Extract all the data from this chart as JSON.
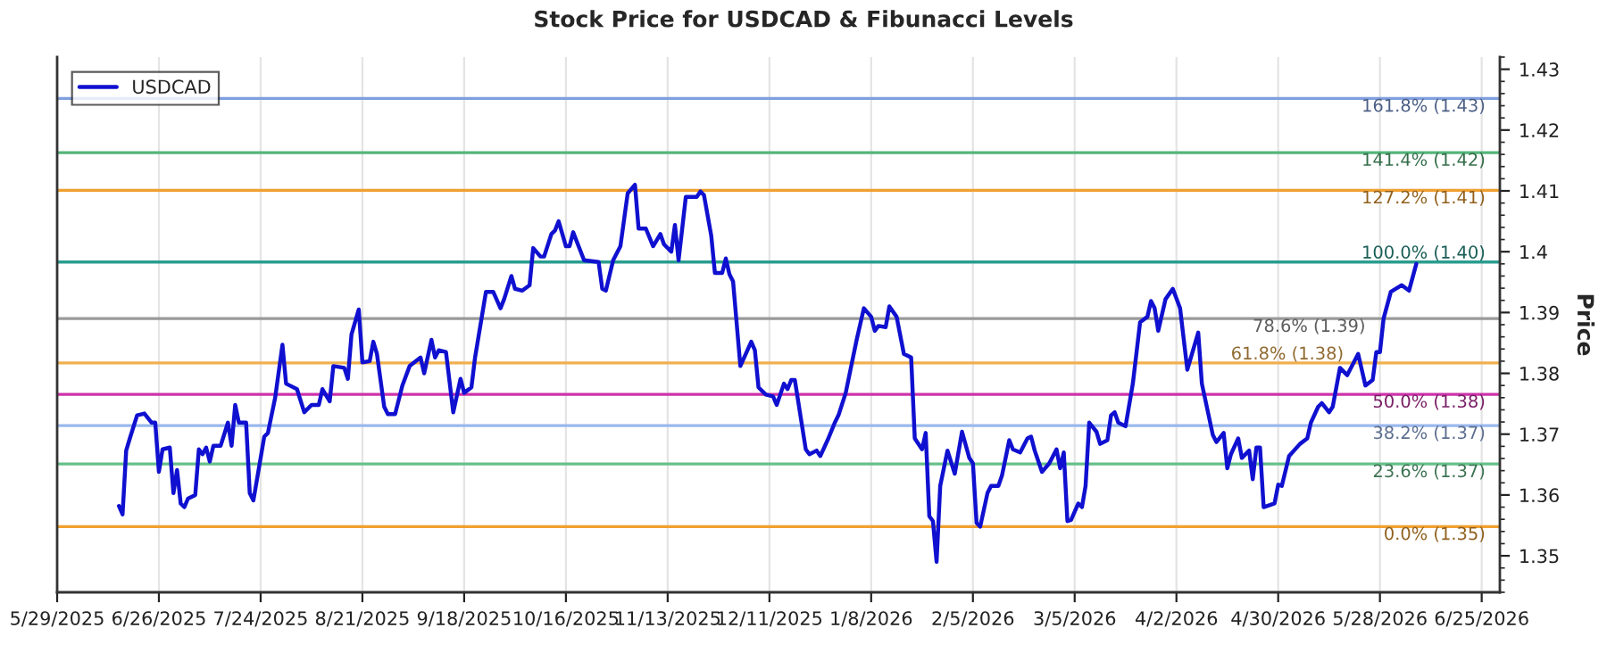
{
  "chart_data": {
    "type": "line",
    "title": "Stock Price for USDCAD & Fibunacci Levels",
    "ylabel": "Price",
    "x": [
      "2025-06-15",
      "2025-06-16",
      "2025-06-17",
      "2025-06-18",
      "2025-06-20",
      "2025-06-22",
      "2025-06-24",
      "2025-06-25",
      "2025-06-26",
      "2025-06-27",
      "2025-06-29",
      "2025-06-30",
      "2025-07-01",
      "2025-07-02",
      "2025-07-03",
      "2025-07-04",
      "2025-07-06",
      "2025-07-07",
      "2025-07-08",
      "2025-07-09",
      "2025-07-10",
      "2025-07-11",
      "2025-07-13",
      "2025-07-15",
      "2025-07-16",
      "2025-07-17",
      "2025-07-18",
      "2025-07-20",
      "2025-07-21",
      "2025-07-22",
      "2025-07-25",
      "2025-07-26",
      "2025-07-28",
      "2025-07-30",
      "2025-07-31",
      "2025-08-03",
      "2025-08-05",
      "2025-08-07",
      "2025-08-09",
      "2025-08-10",
      "2025-08-12",
      "2025-08-13",
      "2025-08-16",
      "2025-08-17",
      "2025-08-18",
      "2025-08-20",
      "2025-08-21",
      "2025-08-23",
      "2025-08-24",
      "2025-08-25",
      "2025-08-27",
      "2025-08-28",
      "2025-08-30",
      "2025-09-01",
      "2025-09-03",
      "2025-09-06",
      "2025-09-07",
      "2025-09-09",
      "2025-09-10",
      "2025-09-11",
      "2025-09-13",
      "2025-09-15",
      "2025-09-17",
      "2025-09-18",
      "2025-09-20",
      "2025-09-21",
      "2025-09-24",
      "2025-09-26",
      "2025-09-28",
      "2025-09-29",
      "2025-10-01",
      "2025-10-02",
      "2025-10-04",
      "2025-10-06",
      "2025-10-07",
      "2025-10-09",
      "2025-10-10",
      "2025-10-12",
      "2025-10-13",
      "2025-10-14",
      "2025-10-16",
      "2025-10-17",
      "2025-10-18",
      "2025-10-21",
      "2025-10-25",
      "2025-10-26",
      "2025-10-27",
      "2025-10-29",
      "2025-10-31",
      "2025-11-02",
      "2025-11-04",
      "2025-11-05",
      "2025-11-07",
      "2025-11-09",
      "2025-11-11",
      "2025-11-12",
      "2025-11-14",
      "2025-11-15",
      "2025-11-16",
      "2025-11-18",
      "2025-11-21",
      "2025-11-22",
      "2025-11-23",
      "2025-11-25",
      "2025-11-26",
      "2025-11-28",
      "2025-11-29",
      "2025-11-30",
      "2025-12-01",
      "2025-12-03",
      "2025-12-06",
      "2025-12-07",
      "2025-12-08",
      "2025-12-10",
      "2025-12-12",
      "2025-12-13",
      "2025-12-15",
      "2025-12-16",
      "2025-12-17",
      "2025-12-18",
      "2025-12-21",
      "2025-12-22",
      "2025-12-24",
      "2025-12-25",
      "2025-12-27",
      "2025-12-29",
      "2025-12-30",
      "2026-01-01",
      "2026-01-04",
      "2026-01-06",
      "2026-01-08",
      "2026-01-09",
      "2026-01-10",
      "2026-01-12",
      "2026-01-13",
      "2026-01-15",
      "2026-01-17",
      "2026-01-19",
      "2026-01-20",
      "2026-01-22",
      "2026-01-23",
      "2026-01-24",
      "2026-01-25",
      "2026-01-26",
      "2026-01-27",
      "2026-01-29",
      "2026-01-31",
      "2026-02-02",
      "2026-02-04",
      "2026-02-05",
      "2026-02-06",
      "2026-02-07",
      "2026-02-09",
      "2026-02-10",
      "2026-02-12",
      "2026-02-13",
      "2026-02-15",
      "2026-02-16",
      "2026-02-18",
      "2026-02-20",
      "2026-02-21",
      "2026-02-22",
      "2026-02-24",
      "2026-02-26",
      "2026-02-28",
      "2026-03-01",
      "2026-03-02",
      "2026-03-03",
      "2026-03-04",
      "2026-03-06",
      "2026-03-07",
      "2026-03-08",
      "2026-03-09",
      "2026-03-11",
      "2026-03-12",
      "2026-03-14",
      "2026-03-15",
      "2026-03-16",
      "2026-03-17",
      "2026-03-19",
      "2026-03-21",
      "2026-03-23",
      "2026-03-25",
      "2026-03-26",
      "2026-03-27",
      "2026-03-28",
      "2026-03-30",
      "2026-04-01",
      "2026-04-03",
      "2026-04-05",
      "2026-04-08",
      "2026-04-09",
      "2026-04-12",
      "2026-04-13",
      "2026-04-15",
      "2026-04-16",
      "2026-04-17",
      "2026-04-19",
      "2026-04-20",
      "2026-04-22",
      "2026-04-23",
      "2026-04-24",
      "2026-04-25",
      "2026-04-26",
      "2026-04-29",
      "2026-04-30",
      "2026-05-01",
      "2026-05-03",
      "2026-05-06",
      "2026-05-08",
      "2026-05-09",
      "2026-05-11",
      "2026-05-12",
      "2026-05-14",
      "2026-05-15",
      "2026-05-17",
      "2026-05-19",
      "2026-05-22",
      "2026-05-24",
      "2026-05-26",
      "2026-05-27",
      "2026-05-28",
      "2026-05-29",
      "2026-05-31",
      "2026-06-03",
      "2026-06-05",
      "2026-06-07"
    ],
    "series": [
      {
        "name": "USDCAD",
        "color": "#1010d0",
        "values": [
          1.3582,
          1.3568,
          1.3673,
          1.3693,
          1.3731,
          1.3734,
          1.3719,
          1.3719,
          1.3638,
          1.3675,
          1.3678,
          1.3603,
          1.3641,
          1.3586,
          1.358,
          1.3594,
          1.36,
          1.3675,
          1.3667,
          1.3678,
          1.3655,
          1.3681,
          1.3681,
          1.3719,
          1.3681,
          1.3748,
          1.3719,
          1.3719,
          1.3603,
          1.3591,
          1.3696,
          1.3702,
          1.376,
          1.3847,
          1.3783,
          1.3774,
          1.3736,
          1.3748,
          1.3748,
          1.3774,
          1.3754,
          1.3812,
          1.3809,
          1.3791,
          1.3864,
          1.3905,
          1.3818,
          1.382,
          1.3852,
          1.3832,
          1.3745,
          1.3733,
          1.3733,
          1.378,
          1.3812,
          1.3826,
          1.38,
          1.3855,
          1.3826,
          1.3838,
          1.3835,
          1.3736,
          1.3791,
          1.3768,
          1.3777,
          1.3826,
          1.3934,
          1.3934,
          1.3907,
          1.3922,
          1.396,
          1.3939,
          1.3936,
          1.3945,
          1.4006,
          1.3992,
          1.3992,
          1.4029,
          1.4035,
          1.405,
          1.4009,
          1.4009,
          1.4032,
          1.3986,
          1.3983,
          1.3939,
          1.3936,
          1.3986,
          1.4009,
          1.4096,
          1.411,
          1.4038,
          1.4038,
          1.4009,
          1.4029,
          1.4012,
          1.4,
          1.4044,
          1.3986,
          1.409,
          1.409,
          1.4099,
          1.4093,
          1.4026,
          1.3965,
          1.3965,
          1.3989,
          1.3963,
          1.3951,
          1.3812,
          1.3852,
          1.3838,
          1.3777,
          1.3765,
          1.3762,
          1.3748,
          1.3783,
          1.3774,
          1.3789,
          1.3789,
          1.3675,
          1.3667,
          1.3673,
          1.3664,
          1.369,
          1.3719,
          1.3731,
          1.3768,
          1.3855,
          1.3907,
          1.3893,
          1.387,
          1.3878,
          1.3876,
          1.391,
          1.3893,
          1.3832,
          1.3826,
          1.3693,
          1.3675,
          1.3702,
          1.3565,
          1.3557,
          1.349,
          1.3615,
          1.3673,
          1.3635,
          1.3704,
          1.3661,
          1.3652,
          1.3554,
          1.3548,
          1.3603,
          1.3615,
          1.3615,
          1.3632,
          1.369,
          1.3675,
          1.367,
          1.3693,
          1.3696,
          1.3673,
          1.3638,
          1.3652,
          1.3675,
          1.3644,
          1.367,
          1.3557,
          1.3559,
          1.3586,
          1.358,
          1.3615,
          1.3719,
          1.3704,
          1.3684,
          1.369,
          1.3731,
          1.3736,
          1.3719,
          1.3713,
          1.3783,
          1.3884,
          1.3893,
          1.3919,
          1.3907,
          1.387,
          1.3922,
          1.3939,
          1.3907,
          1.3806,
          1.3867,
          1.3783,
          1.3699,
          1.3687,
          1.3702,
          1.3644,
          1.3667,
          1.3693,
          1.3661,
          1.3673,
          1.3626,
          1.3678,
          1.3678,
          1.358,
          1.3586,
          1.3617,
          1.3615,
          1.3664,
          1.3684,
          1.3693,
          1.3719,
          1.3745,
          1.3751,
          1.3736,
          1.3745,
          1.3809,
          1.3797,
          1.3832,
          1.378,
          1.3789,
          1.3835,
          1.3835,
          1.389,
          1.3934,
          1.3945,
          1.3936,
          1.398
        ]
      }
    ],
    "xlim": [
      "2025-05-29",
      "2026-06-30"
    ],
    "xticks": [
      {
        "value": "2025-05-29",
        "label": "5/29/2025"
      },
      {
        "value": "2025-06-26",
        "label": "6/26/2025"
      },
      {
        "value": "2025-07-24",
        "label": "7/24/2025"
      },
      {
        "value": "2025-08-21",
        "label": "8/21/2025"
      },
      {
        "value": "2025-09-18",
        "label": "9/18/2025"
      },
      {
        "value": "2025-10-16",
        "label": "10/16/2025"
      },
      {
        "value": "2025-11-13",
        "label": "11/13/2025"
      },
      {
        "value": "2025-12-11",
        "label": "12/11/2025"
      },
      {
        "value": "2026-01-08",
        "label": "1/8/2026"
      },
      {
        "value": "2026-02-05",
        "label": "2/5/2026"
      },
      {
        "value": "2026-03-05",
        "label": "3/5/2026"
      },
      {
        "value": "2026-04-02",
        "label": "4/2/2026"
      },
      {
        "value": "2026-04-30",
        "label": "4/30/2026"
      },
      {
        "value": "2026-05-28",
        "label": "5/28/2026"
      },
      {
        "value": "2026-06-25",
        "label": "6/25/2026"
      }
    ],
    "ylim": [
      1.344,
      1.432
    ],
    "yticks": [
      1.35,
      1.36,
      1.37,
      1.38,
      1.39,
      1.4,
      1.41,
      1.42,
      1.43
    ],
    "ref_lines": [
      {
        "axis": "y",
        "value": 1.4252,
        "label": "161.8% (1.43)",
        "color": "#7f9fdf"
      },
      {
        "axis": "y",
        "value": 1.4163,
        "label": "141.4% (1.42)",
        "color": "#55b57a"
      },
      {
        "axis": "y",
        "value": 1.4101,
        "label": "127.2% (1.41)",
        "color": "#f0a030"
      },
      {
        "axis": "y",
        "value": 1.3983,
        "label": "100.0% (1.40)",
        "color": "#2a9d8f"
      },
      {
        "axis": "y",
        "value": 1.389,
        "label": "78.6% (1.39)",
        "color": "#999999"
      },
      {
        "axis": "y",
        "value": 1.3817,
        "label": "61.8% (1.38)",
        "color": "#f0b050"
      },
      {
        "axis": "y",
        "value": 1.37655,
        "label": "50.0% (1.38)",
        "color": "#cc33aa"
      },
      {
        "axis": "y",
        "value": 1.3714,
        "label": "38.2% (1.37)",
        "color": "#9ab8ee"
      },
      {
        "axis": "y",
        "value": 1.3651,
        "label": "23.6% (1.37)",
        "color": "#66c08a"
      },
      {
        "axis": "y",
        "value": 1.3548,
        "label": "0.0% (1.35)",
        "color": "#f0a030"
      }
    ],
    "grid": "x",
    "legend": "top left",
    "line_style": "solid",
    "marker": "none"
  }
}
